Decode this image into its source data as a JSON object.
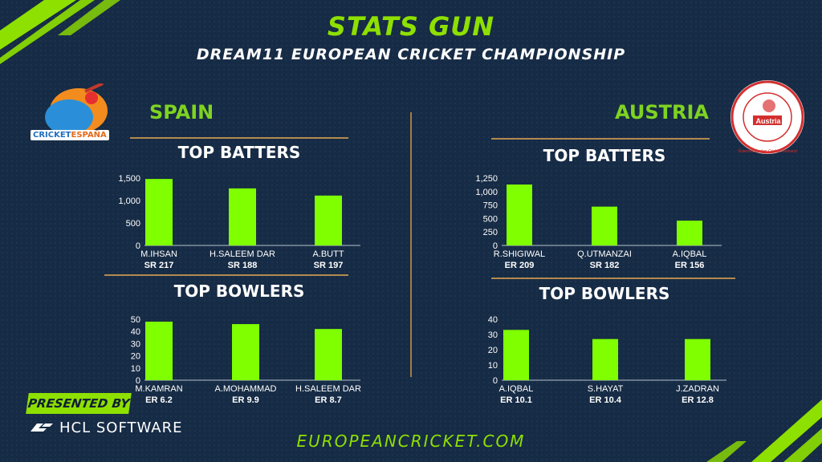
{
  "header": {
    "title": "STATS GUN",
    "subtitle": "DREAM11 EUROPEAN CRICKET CHAMPIONSHIP"
  },
  "teams": {
    "left": {
      "name": "SPAIN",
      "logo_text_a": "CRICKET",
      "logo_text_b": "ESPAÑA"
    },
    "right": {
      "name": "AUSTRIA",
      "logo_text": "Austria",
      "logo_ring_text": "Österreichischer Cricket Verband"
    }
  },
  "sections": {
    "spain_batters": "TOP BATTERS",
    "spain_bowlers": "TOP BOWLERS",
    "austria_batters": "TOP BATTERS",
    "austria_bowlers": "TOP BOWLERS"
  },
  "footer": {
    "website": "EUROPEANCRICKET.COM",
    "presented_by": "PRESENTED BY",
    "sponsor": "HCL SOFTWARE"
  },
  "colors": {
    "bar": "#7fff00",
    "accent": "#8ee000",
    "background": "#162b45",
    "rule": "#b38a4f"
  },
  "chart_data": [
    {
      "type": "bar",
      "id": "spain-batters",
      "categories": [
        "M.IHSAN",
        "H.SALEEM DAR",
        "A.BUTT"
      ],
      "sublabels": [
        "SR 217",
        "SR 188",
        "SR 197"
      ],
      "values": [
        1480,
        1270,
        1110
      ],
      "yticks": [
        "0",
        "500",
        "1,000",
        "1,500"
      ],
      "ylim": [
        0,
        1500
      ]
    },
    {
      "type": "bar",
      "id": "spain-bowlers",
      "categories": [
        "M.KAMRAN",
        "A.MOHAMMAD",
        "H.SALEEM DAR"
      ],
      "sublabels": [
        "ER 6.2",
        "ER 9.9",
        "ER 8.7"
      ],
      "values": [
        48,
        46,
        42
      ],
      "yticks": [
        "0",
        "10",
        "20",
        "30",
        "40",
        "50"
      ],
      "ylim": [
        0,
        50
      ]
    },
    {
      "type": "bar",
      "id": "austria-batters",
      "categories": [
        "R.SHIGIWAL",
        "Q.UTMANZAI",
        "A.IQBAL"
      ],
      "sublabels": [
        "ER 209",
        "SR 182",
        "ER 156"
      ],
      "values": [
        1130,
        720,
        460
      ],
      "yticks": [
        "0",
        "250",
        "500",
        "750",
        "1,000",
        "1,250"
      ],
      "ylim": [
        0,
        1250
      ]
    },
    {
      "type": "bar",
      "id": "austria-bowlers",
      "categories": [
        "A.IQBAL",
        "S.HAYAT",
        "J.ZADRAN"
      ],
      "sublabels": [
        "ER 10.1",
        "ER 10.4",
        "ER 12.8"
      ],
      "values": [
        33,
        27,
        27
      ],
      "yticks": [
        "0",
        "10",
        "20",
        "30",
        "40"
      ],
      "ylim": [
        0,
        40
      ]
    }
  ]
}
